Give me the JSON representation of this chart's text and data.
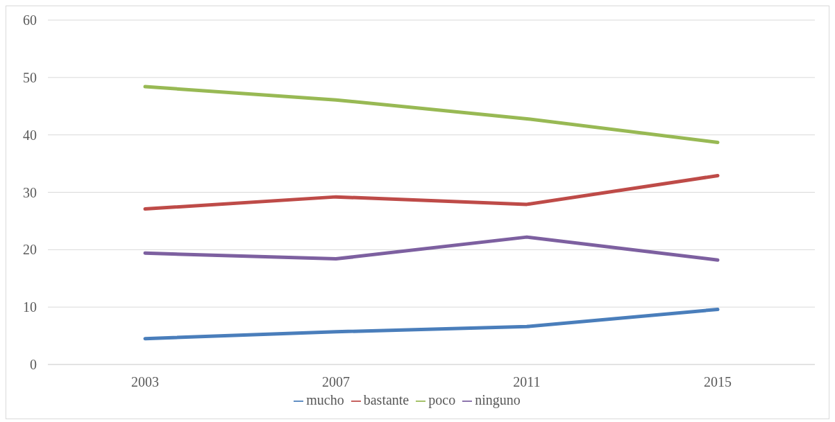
{
  "chart_data": {
    "type": "line",
    "categories": [
      "2003",
      "2007",
      "2011",
      "2015"
    ],
    "series": [
      {
        "name": "mucho",
        "color": "#4a7ebb",
        "values": [
          4.5,
          5.7,
          6.6,
          9.6
        ]
      },
      {
        "name": "bastante",
        "color": "#be4b48",
        "values": [
          27.1,
          29.2,
          27.9,
          32.9
        ]
      },
      {
        "name": "poco",
        "color": "#98b954",
        "values": [
          48.4,
          46.1,
          42.8,
          38.7
        ]
      },
      {
        "name": "ninguno",
        "color": "#7d60a0",
        "values": [
          19.4,
          18.4,
          22.2,
          18.2
        ]
      }
    ],
    "ylim": [
      0,
      60
    ],
    "yticks": [
      0,
      10,
      20,
      30,
      40,
      50,
      60
    ],
    "grid": "y",
    "legend": "bottom",
    "marker": "none",
    "line_style": "solid"
  }
}
